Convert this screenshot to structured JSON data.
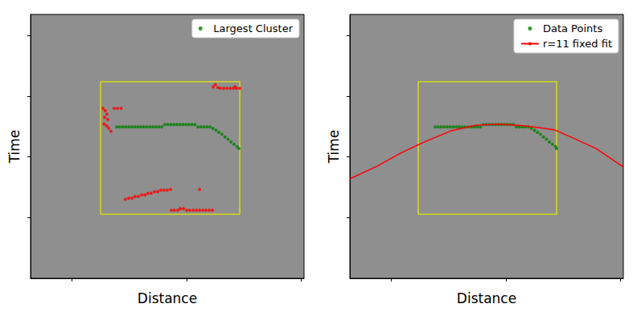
{
  "chart_data": [
    {
      "type": "scatter",
      "xlabel": "Distance",
      "ylabel": "Time",
      "xlim": [
        0,
        100
      ],
      "ylim": [
        0,
        100
      ],
      "xticks": [
        15,
        57,
        99
      ],
      "yticks": [
        23,
        46,
        69,
        92
      ],
      "tick_labels": false,
      "grid": false,
      "legend": "upper right",
      "box": {
        "x": [
          25.6,
          76.5
        ],
        "y": [
          24.3,
          74.5
        ],
        "color": "#e6e600"
      },
      "series": [
        {
          "name": "Largest Cluster",
          "type": "scatter",
          "color": "#008000",
          "marker": "circle",
          "x": [
            31.5,
            32.6,
            33.7,
            34.8,
            35.9,
            37,
            38.1,
            39.2,
            40.3,
            41.4,
            42.5,
            43.6,
            44.7,
            45.8,
            46.9,
            48,
            49.1,
            50.2,
            51.3,
            52.4,
            53.5,
            54.6,
            55.7,
            56.8,
            57.9,
            59,
            60.1,
            61.2,
            62.3,
            63.4,
            64.5,
            65.6,
            66.7,
            67.8,
            68.9,
            70,
            71.1,
            72.2,
            73.3,
            74.4,
            75.5,
            76.2
          ],
          "values": [
            57.4,
            57.4,
            57.4,
            57.4,
            57.4,
            57.4,
            57.4,
            57.4,
            57.4,
            57.4,
            57.4,
            57.4,
            57.4,
            57.4,
            57.4,
            57.4,
            58.3,
            58.3,
            58.3,
            58.3,
            58.3,
            58.3,
            58.3,
            58.3,
            58.3,
            58.3,
            58.3,
            57.4,
            57.4,
            57.4,
            57.4,
            57.4,
            56.8,
            56.1,
            55.3,
            54.6,
            53.6,
            52.7,
            51.7,
            50.8,
            49.9,
            49.2
          ]
        },
        {
          "type": "scatter",
          "color": "#ff0000",
          "marker": "circle",
          "x": [
            26.5,
            27.3,
            27.9,
            27.1,
            28.2,
            26.9,
            27.8,
            28.6,
            29.4,
            30.6,
            31.8,
            33.1,
            66.8,
            67.6,
            68.5,
            69.4,
            70.6,
            71.8,
            73,
            74.1,
            75.3,
            76.5,
            74.7,
            34.7,
            35.9,
            37.1,
            38.2,
            39.4,
            40.6,
            41.8,
            42.9,
            44.1,
            45.3,
            46.5,
            47.6,
            48.8,
            50,
            51.2,
            61.8,
            51.5,
            52.6,
            53.8,
            54.7,
            55.9,
            57.1,
            58.2,
            59.4,
            60.6,
            61.8,
            63,
            64.1,
            65.3,
            66.5
          ],
          "values": [
            64.4,
            63.5,
            62.2,
            61,
            60.2,
            58.5,
            57.8,
            56.9,
            55.7,
            64.4,
            64.4,
            64.4,
            72.6,
            73.4,
            72.3,
            72,
            72,
            72,
            72,
            72,
            72,
            72,
            72.6,
            29.9,
            30.4,
            30.4,
            31,
            31,
            31.6,
            31.6,
            32.2,
            32.2,
            32.8,
            32.8,
            33.4,
            33.4,
            33.4,
            33.7,
            33.7,
            25.8,
            25.8,
            25.8,
            26.4,
            26.4,
            25.8,
            25.8,
            25.8,
            25.8,
            25.8,
            25.8,
            25.8,
            25.8,
            25.8
          ]
        }
      ]
    },
    {
      "type": "scatter",
      "xlabel": "Distance",
      "ylabel": "Time",
      "xlim": [
        0,
        100
      ],
      "ylim": [
        0,
        100
      ],
      "xticks": [
        15,
        57,
        99
      ],
      "yticks": [
        23,
        46,
        69,
        92
      ],
      "tick_labels": false,
      "grid": false,
      "legend": "upper right",
      "box": {
        "x": [
          25,
          75.6
        ],
        "y": [
          24.3,
          74.5
        ],
        "color": "#e6e600"
      },
      "series": [
        {
          "name": "Data Points",
          "type": "scatter",
          "color": "#008000",
          "marker": "circle",
          "x": [
            31.2,
            32.3,
            33.4,
            34.5,
            35.6,
            36.7,
            37.8,
            38.9,
            40,
            41.1,
            42.2,
            43.3,
            44.4,
            45.5,
            46.6,
            47.7,
            48.8,
            49.9,
            51,
            52.1,
            53.2,
            54.3,
            55.4,
            56.5,
            57.6,
            58.7,
            59.8,
            60.9,
            62,
            63.1,
            64.2,
            65.3,
            66.4,
            67.5,
            68.6,
            69.7,
            70.8,
            71.9,
            73,
            74.1,
            75.2,
            75.6
          ],
          "values": [
            57.4,
            57.4,
            57.4,
            57.4,
            57.4,
            57.4,
            57.4,
            57.4,
            57.4,
            57.4,
            57.4,
            57.4,
            57.4,
            57.4,
            57.4,
            57.4,
            58.3,
            58.3,
            58.3,
            58.3,
            58.3,
            58.3,
            58.3,
            58.3,
            58.3,
            58.3,
            58.3,
            57.4,
            57.4,
            57.4,
            57.4,
            57.4,
            56.8,
            56.1,
            55.3,
            54.6,
            53.6,
            52.7,
            51.7,
            50.8,
            49.9,
            49.2
          ]
        },
        {
          "name": "r=11 fixed fit",
          "type": "line",
          "color": "#ff0000",
          "line_style": "solid",
          "x": [
            0,
            10,
            19,
            28,
            37,
            46,
            54,
            62,
            70,
            75,
            82,
            90,
            100
          ],
          "values": [
            37.7,
            42.5,
            47.7,
            52,
            55.9,
            58,
            58.4,
            58,
            57,
            56.2,
            53,
            49.2,
            42.2
          ]
        }
      ]
    }
  ]
}
